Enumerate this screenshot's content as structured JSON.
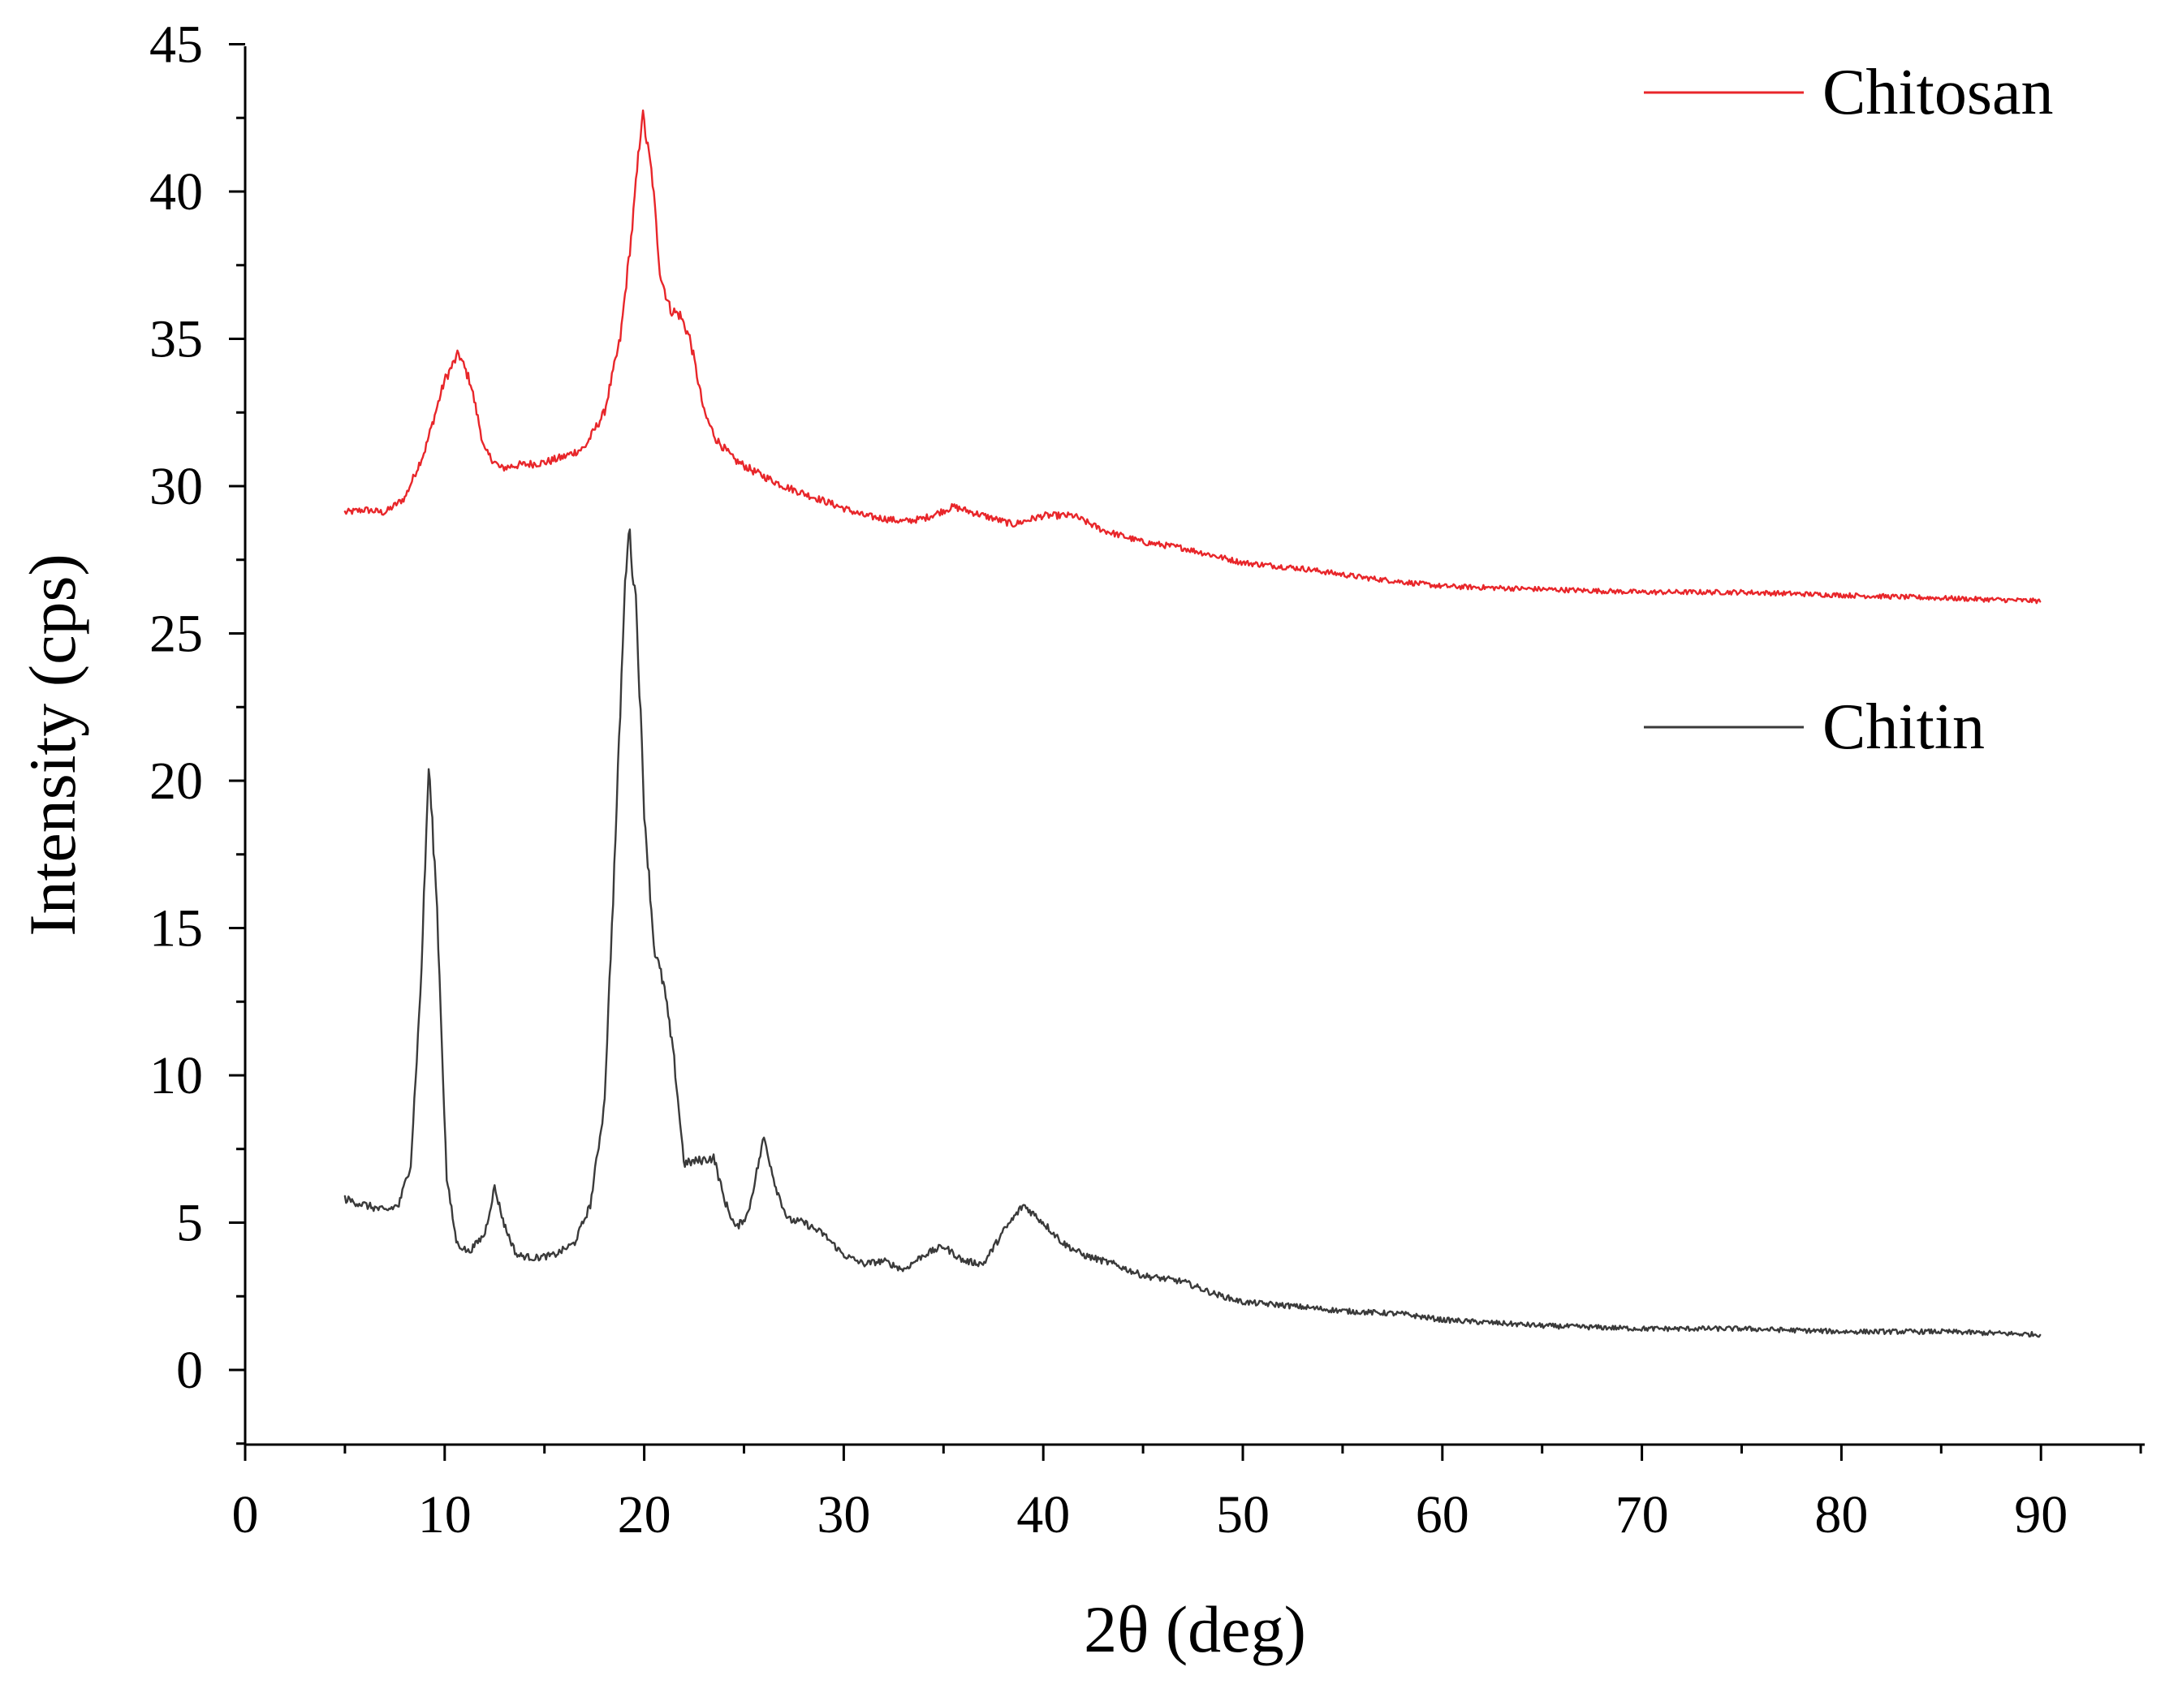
{
  "chart_data": {
    "type": "line",
    "title": "",
    "xlabel": "2θ (deg)",
    "ylabel": "Intensity (cps)",
    "xlim": [
      0,
      95
    ],
    "ylim": [
      -2.5,
      45
    ],
    "xticks": [
      0,
      10,
      20,
      30,
      40,
      50,
      60,
      70,
      80,
      90
    ],
    "yticks": [
      0,
      5,
      10,
      15,
      20,
      25,
      30,
      35,
      40,
      45
    ],
    "legend_position": "top-right",
    "series": [
      {
        "name": "Chitosan",
        "color": "#e8262a",
        "points": [
          [
            5,
            29.1
          ],
          [
            6,
            29.2
          ],
          [
            7,
            29.1
          ],
          [
            8,
            29.6
          ],
          [
            9,
            31.2
          ],
          [
            10,
            33.6
          ],
          [
            10.7,
            34.5
          ],
          [
            11.3,
            33.5
          ],
          [
            12,
            31.2
          ],
          [
            12.8,
            30.6
          ],
          [
            13.5,
            30.7
          ],
          [
            15,
            30.8
          ],
          [
            16,
            31.0
          ],
          [
            17,
            31.3
          ],
          [
            18,
            32.5
          ],
          [
            18.8,
            35.0
          ],
          [
            19.4,
            38.8
          ],
          [
            19.9,
            42.7
          ],
          [
            20.4,
            40.5
          ],
          [
            20.8,
            37.2
          ],
          [
            21.3,
            36.0
          ],
          [
            21.8,
            35.8
          ],
          [
            22.3,
            35.0
          ],
          [
            23,
            32.5
          ],
          [
            23.6,
            31.6
          ],
          [
            24.5,
            30.9
          ],
          [
            25.5,
            30.5
          ],
          [
            27,
            30.0
          ],
          [
            29,
            29.5
          ],
          [
            31,
            29.0
          ],
          [
            33,
            28.8
          ],
          [
            34,
            28.9
          ],
          [
            35.5,
            29.3
          ],
          [
            37,
            29.0
          ],
          [
            38.5,
            28.7
          ],
          [
            40,
            29.0
          ],
          [
            41.5,
            29.0
          ],
          [
            43,
            28.5
          ],
          [
            45,
            28.1
          ],
          [
            47,
            27.9
          ],
          [
            50,
            27.4
          ],
          [
            53,
            27.2
          ],
          [
            56,
            26.9
          ],
          [
            60,
            26.6
          ],
          [
            65,
            26.5
          ],
          [
            70,
            26.4
          ],
          [
            75,
            26.4
          ],
          [
            80,
            26.3
          ],
          [
            85,
            26.2
          ],
          [
            90,
            26.1
          ]
        ]
      },
      {
        "name": "Chitin",
        "color": "#3a3a3a",
        "points": [
          [
            5,
            5.8
          ],
          [
            6,
            5.6
          ],
          [
            7,
            5.4
          ],
          [
            7.7,
            5.6
          ],
          [
            8.3,
            7.0
          ],
          [
            8.8,
            13.0
          ],
          [
            9.2,
            20.5
          ],
          [
            9.6,
            16.0
          ],
          [
            10.1,
            6.5
          ],
          [
            10.6,
            4.3
          ],
          [
            11.2,
            4.0
          ],
          [
            12,
            4.6
          ],
          [
            12.5,
            6.2
          ],
          [
            13,
            4.9
          ],
          [
            13.6,
            3.9
          ],
          [
            14.5,
            3.8
          ],
          [
            15.5,
            3.9
          ],
          [
            16.5,
            4.3
          ],
          [
            17.3,
            5.6
          ],
          [
            18,
            9.0
          ],
          [
            18.5,
            17.0
          ],
          [
            19,
            26.0
          ],
          [
            19.2,
            28.7
          ],
          [
            19.6,
            26.0
          ],
          [
            20,
            19.0
          ],
          [
            20.5,
            14.3
          ],
          [
            21,
            13.0
          ],
          [
            21.5,
            10.5
          ],
          [
            22,
            7.0
          ],
          [
            22.7,
            7.1
          ],
          [
            23.5,
            7.2
          ],
          [
            24,
            5.8
          ],
          [
            24.6,
            4.8
          ],
          [
            25.2,
            5.3
          ],
          [
            26,
            7.9
          ],
          [
            26.6,
            6.2
          ],
          [
            27.2,
            5.1
          ],
          [
            28,
            5.0
          ],
          [
            29,
            4.6
          ],
          [
            30,
            3.9
          ],
          [
            31,
            3.6
          ],
          [
            32,
            3.7
          ],
          [
            33,
            3.4
          ],
          [
            34,
            3.9
          ],
          [
            35,
            4.2
          ],
          [
            36,
            3.7
          ],
          [
            37,
            3.6
          ],
          [
            38,
            4.7
          ],
          [
            39,
            5.6
          ],
          [
            40,
            5.0
          ],
          [
            41,
            4.3
          ],
          [
            42,
            3.9
          ],
          [
            43.5,
            3.6
          ],
          [
            45,
            3.2
          ],
          [
            47,
            3.0
          ],
          [
            48.5,
            2.6
          ],
          [
            50,
            2.3
          ],
          [
            52,
            2.2
          ],
          [
            55,
            2.0
          ],
          [
            58,
            1.9
          ],
          [
            60,
            1.7
          ],
          [
            65,
            1.5
          ],
          [
            70,
            1.4
          ],
          [
            75,
            1.4
          ],
          [
            80,
            1.3
          ],
          [
            85,
            1.3
          ],
          [
            90,
            1.2
          ]
        ]
      }
    ]
  }
}
